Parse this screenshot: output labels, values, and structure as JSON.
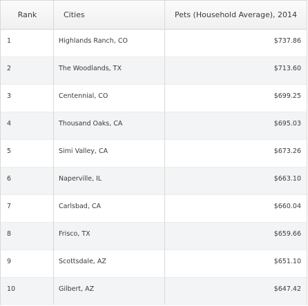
{
  "table": {
    "headers": {
      "rank": "Rank",
      "city": "Cities",
      "pets": "Pets (Household Average), 2014"
    },
    "rows": [
      {
        "rank": "1",
        "city": "Highlands Ranch, CO",
        "pets": "$737.86"
      },
      {
        "rank": "2",
        "city": "The Woodlands, TX",
        "pets": "$713.60"
      },
      {
        "rank": "3",
        "city": "Centennial, CO",
        "pets": "$699.25"
      },
      {
        "rank": "4",
        "city": "Thousand Oaks, CA",
        "pets": "$695.03"
      },
      {
        "rank": "5",
        "city": "Simi Valley, CA",
        "pets": "$673.26"
      },
      {
        "rank": "6",
        "city": "Naperville, IL",
        "pets": "$663.10"
      },
      {
        "rank": "7",
        "city": "Carlsbad, CA",
        "pets": "$660.04"
      },
      {
        "rank": "8",
        "city": "Frisco, TX",
        "pets": "$659.66"
      },
      {
        "rank": "9",
        "city": "Scottsdale, AZ",
        "pets": "$651.10"
      },
      {
        "rank": "10",
        "city": "Gilbert, AZ",
        "pets": "$647.42"
      }
    ]
  },
  "colors": {
    "header_bg": "#f3f3f3",
    "alt_row_bg": "#f3f4f5",
    "border": "#d9d9d9",
    "text": "#3a3a3a"
  }
}
